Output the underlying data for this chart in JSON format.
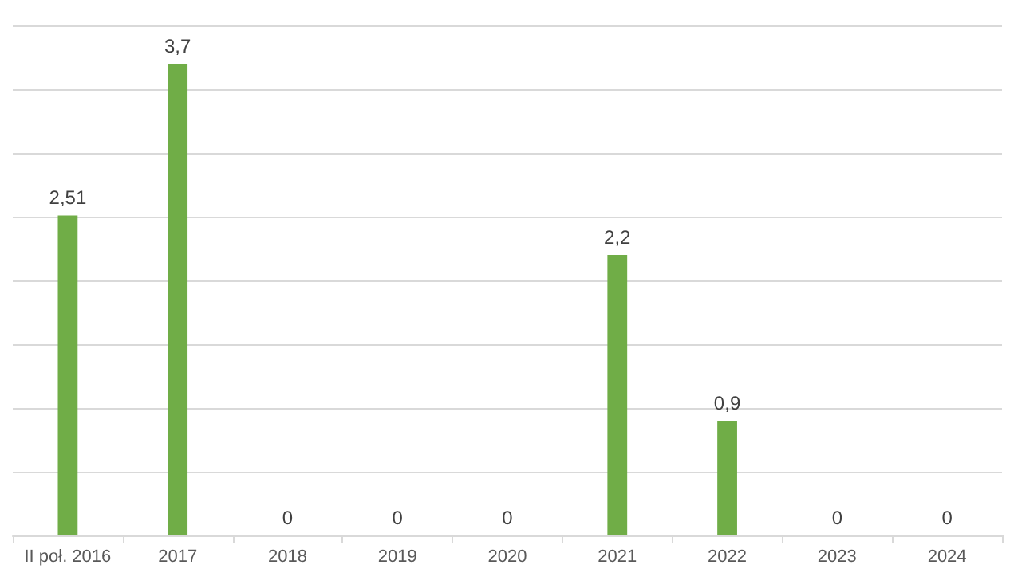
{
  "chart_data": {
    "type": "bar",
    "categories": [
      "II poł. 2016",
      "2017",
      "2018",
      "2019",
      "2020",
      "2021",
      "2022",
      "2023",
      "2024"
    ],
    "values": [
      2.51,
      3.7,
      0,
      0,
      0,
      2.2,
      0.9,
      0,
      0
    ],
    "value_labels": [
      "2,51",
      "3,7",
      "0",
      "0",
      "0",
      "2,2",
      "0,9",
      "0",
      "0"
    ],
    "color": "#70ad47",
    "ylim": [
      0,
      4
    ],
    "yticks": [
      {
        "value": 0,
        "label": null
      },
      {
        "value": 0.5,
        "label": null
      },
      {
        "value": 1,
        "label": null
      },
      {
        "value": 1.5,
        "label": null
      },
      {
        "value": 2,
        "label": null
      },
      {
        "value": 2.5,
        "label": null
      },
      {
        "value": 3,
        "label": null
      },
      {
        "value": 3.5,
        "label": null
      },
      {
        "value": 4,
        "label": null
      }
    ],
    "grid": "y",
    "tick_labels": "x"
  }
}
